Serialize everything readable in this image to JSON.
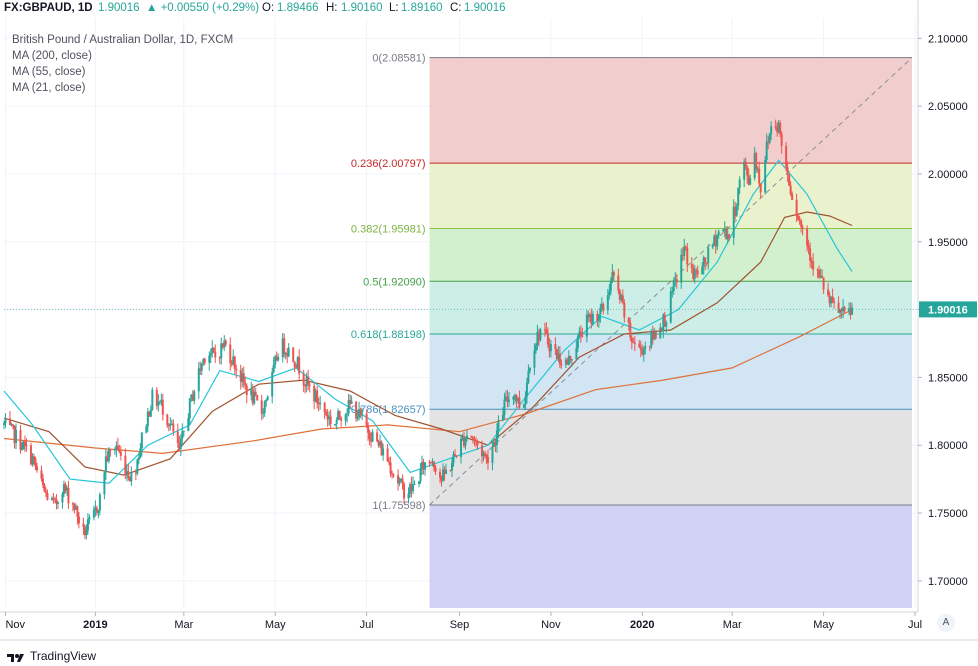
{
  "header": {
    "symbol": "FX:GBPAUD, 1D",
    "last": "1.90016",
    "change": "▲ +0.00550 (+0.29%)",
    "open_label": "O:",
    "open": "1.89466",
    "high_label": "H:",
    "high": "1.90160",
    "low_label": "L:",
    "low": "1.89160",
    "close_label": "C:",
    "close": "1.90016"
  },
  "legend": {
    "title": "British Pound / Australian Dollar, 1D, FXCM",
    "ma200": "MA (200, close)",
    "ma55": "MA (55, close)",
    "ma21": "MA (21, close)"
  },
  "footer": {
    "brand": "TradingView",
    "scale_button": "A"
  },
  "colors": {
    "up": "#26a69a",
    "down": "#ef5350",
    "ma200": "#e0703a",
    "ma55": "#a0522d",
    "ma21": "#26c6da",
    "text": "#131722",
    "grid": "#f0f3fa"
  },
  "chart_data": {
    "type": "candlestick",
    "symbol": "GBPAUD",
    "timeframe": "1D",
    "y_axis": {
      "min": 1.68,
      "max": 2.115,
      "ticks": [
        1.7,
        1.75,
        1.8,
        1.85,
        1.9,
        1.95,
        2.0,
        2.05,
        2.1
      ],
      "tick_labels": [
        "1.70000",
        "1.75000",
        "1.80000",
        "1.85000",
        "1.90000",
        "1.95000",
        "2.00000",
        "2.05000",
        "2.10000"
      ]
    },
    "x_axis": {
      "range": [
        "2018-11-01",
        "2020-07-03"
      ],
      "ticks": [
        {
          "date": "2018-11-02",
          "label": "Nov"
        },
        {
          "date": "2019-01-01",
          "label": "2019"
        },
        {
          "date": "2019-03-01",
          "label": "Mar"
        },
        {
          "date": "2019-05-01",
          "label": "May"
        },
        {
          "date": "2019-07-01",
          "label": "Jul"
        },
        {
          "date": "2019-09-01",
          "label": "Sep"
        },
        {
          "date": "2019-11-01",
          "label": "Nov"
        },
        {
          "date": "2020-01-01",
          "label": "2020"
        },
        {
          "date": "2020-03-01",
          "label": "Mar"
        },
        {
          "date": "2020-05-01",
          "label": "May"
        },
        {
          "date": "2020-07-01",
          "label": "Jul"
        }
      ]
    },
    "last_price": {
      "value": 1.90016,
      "label": "1.90016"
    },
    "fibonacci": {
      "start": "2019-08-12",
      "end": "2020-06-29",
      "anchor_low": {
        "date": "2019-08-12",
        "price": 1.75598
      },
      "anchor_high": {
        "date": "2020-06-29",
        "price": 2.08581
      },
      "levels": [
        {
          "ratio": 0,
          "price": 2.08581,
          "label": "0(2.08581)",
          "line": "#787b86",
          "fill": "#f2cdcd",
          "label_color": "#787b86"
        },
        {
          "ratio": 0.236,
          "price": 2.00797,
          "label": "0.236(2.00797)",
          "line": "#c62828",
          "fill": "#e9f2cc",
          "label_color": "#c62828"
        },
        {
          "ratio": 0.382,
          "price": 1.95981,
          "label": "0.382(1.95981)",
          "line": "#8bc34a",
          "fill": "#d3f0ce",
          "label_color": "#7cb342"
        },
        {
          "ratio": 0.5,
          "price": 1.9209,
          "label": "0.5(1.92090)",
          "line": "#43a047",
          "fill": "#cceee6",
          "label_color": "#43a047"
        },
        {
          "ratio": 0.618,
          "price": 1.88198,
          "label": "0.618(1.88198)",
          "line": "#26a69a",
          "fill": "#d2e5f2",
          "label_color": "#26a69a"
        },
        {
          "ratio": 0.786,
          "price": 1.82657,
          "label": "0.786(1.82657)",
          "line": "#4a90c2",
          "fill": "#e3e3e3",
          "label_color": "#4a90c2"
        },
        {
          "ratio": 1,
          "price": 1.75598,
          "label": "1(1.75598)",
          "line": "#787b86",
          "fill": "#d1d1f5",
          "label_color": "#787b86"
        }
      ],
      "bottom_fill": "#d1d1f5",
      "bottom_price": 1.68
    },
    "price_path": [
      [
        "2018-11-01",
        1.815
      ],
      [
        "2018-11-10",
        1.805
      ],
      [
        "2018-11-20",
        1.79
      ],
      [
        "2018-11-28",
        1.765
      ],
      [
        "2018-12-05",
        1.755
      ],
      [
        "2018-12-10",
        1.77
      ],
      [
        "2018-12-18",
        1.755
      ],
      [
        "2018-12-24",
        1.735
      ],
      [
        "2018-12-30",
        1.745
      ],
      [
        "2019-01-04",
        1.76
      ],
      [
        "2019-01-08",
        1.79
      ],
      [
        "2019-01-15",
        1.8
      ],
      [
        "2019-01-20",
        1.785
      ],
      [
        "2019-01-26",
        1.775
      ],
      [
        "2019-02-02",
        1.81
      ],
      [
        "2019-02-08",
        1.835
      ],
      [
        "2019-02-14",
        1.83
      ],
      [
        "2019-02-20",
        1.815
      ],
      [
        "2019-02-26",
        1.795
      ],
      [
        "2019-03-04",
        1.825
      ],
      [
        "2019-03-10",
        1.85
      ],
      [
        "2019-03-16",
        1.87
      ],
      [
        "2019-03-22",
        1.865
      ],
      [
        "2019-03-28",
        1.875
      ],
      [
        "2019-04-04",
        1.86
      ],
      [
        "2019-04-10",
        1.845
      ],
      [
        "2019-04-16",
        1.835
      ],
      [
        "2019-04-22",
        1.825
      ],
      [
        "2019-04-28",
        1.845
      ],
      [
        "2019-05-04",
        1.875
      ],
      [
        "2019-05-10",
        1.87
      ],
      [
        "2019-05-16",
        1.86
      ],
      [
        "2019-05-22",
        1.845
      ],
      [
        "2019-05-28",
        1.835
      ],
      [
        "2019-06-03",
        1.825
      ],
      [
        "2019-06-09",
        1.815
      ],
      [
        "2019-06-15",
        1.825
      ],
      [
        "2019-06-21",
        1.83
      ],
      [
        "2019-06-27",
        1.82
      ],
      [
        "2019-07-03",
        1.81
      ],
      [
        "2019-07-09",
        1.8
      ],
      [
        "2019-07-15",
        1.79
      ],
      [
        "2019-07-21",
        1.775
      ],
      [
        "2019-07-27",
        1.765
      ],
      [
        "2019-08-02",
        1.77
      ],
      [
        "2019-08-08",
        1.785
      ],
      [
        "2019-08-14",
        1.79
      ],
      [
        "2019-08-20",
        1.775
      ],
      [
        "2019-08-26",
        1.785
      ],
      [
        "2019-09-01",
        1.8
      ],
      [
        "2019-09-07",
        1.81
      ],
      [
        "2019-09-13",
        1.8
      ],
      [
        "2019-09-19",
        1.79
      ],
      [
        "2019-09-25",
        1.805
      ],
      [
        "2019-10-01",
        1.83
      ],
      [
        "2019-10-07",
        1.84
      ],
      [
        "2019-10-13",
        1.825
      ],
      [
        "2019-10-19",
        1.87
      ],
      [
        "2019-10-25",
        1.885
      ],
      [
        "2019-10-31",
        1.875
      ],
      [
        "2019-11-06",
        1.865
      ],
      [
        "2019-11-12",
        1.86
      ],
      [
        "2019-11-18",
        1.875
      ],
      [
        "2019-11-24",
        1.89
      ],
      [
        "2019-11-30",
        1.895
      ],
      [
        "2019-12-06",
        1.9
      ],
      [
        "2019-12-12",
        1.925
      ],
      [
        "2019-12-18",
        1.905
      ],
      [
        "2019-12-24",
        1.88
      ],
      [
        "2019-12-30",
        1.87
      ],
      [
        "2020-01-05",
        1.875
      ],
      [
        "2020-01-11",
        1.885
      ],
      [
        "2020-01-17",
        1.895
      ],
      [
        "2020-01-23",
        1.92
      ],
      [
        "2020-01-29",
        1.945
      ],
      [
        "2020-02-04",
        1.925
      ],
      [
        "2020-02-10",
        1.93
      ],
      [
        "2020-02-16",
        1.945
      ],
      [
        "2020-02-22",
        1.96
      ],
      [
        "2020-02-28",
        1.955
      ],
      [
        "2020-03-04",
        1.98
      ],
      [
        "2020-03-08",
        2.01
      ],
      [
        "2020-03-12",
        1.995
      ],
      [
        "2020-03-16",
        2.015
      ],
      [
        "2020-03-20",
        1.99
      ],
      [
        "2020-03-24",
        2.02
      ],
      [
        "2020-03-28",
        2.04
      ],
      [
        "2020-04-01",
        2.035
      ],
      [
        "2020-04-05",
        2.01
      ],
      [
        "2020-04-10",
        1.985
      ],
      [
        "2020-04-15",
        1.965
      ],
      [
        "2020-04-20",
        1.95
      ],
      [
        "2020-04-25",
        1.93
      ],
      [
        "2020-04-30",
        1.92
      ],
      [
        "2020-05-05",
        1.905
      ],
      [
        "2020-05-10",
        1.9
      ],
      [
        "2020-05-15",
        1.895
      ],
      [
        "2020-05-20",
        1.9
      ]
    ],
    "moving_averages": [
      {
        "name": "MA (200, close)",
        "color": "#e0703a",
        "points": [
          [
            "2018-11-01",
            1.805
          ],
          [
            "2019-01-01",
            1.798
          ],
          [
            "2019-02-15",
            1.794
          ],
          [
            "2019-04-15",
            1.803
          ],
          [
            "2019-06-01",
            1.812
          ],
          [
            "2019-07-15",
            1.815
          ],
          [
            "2019-09-01",
            1.81
          ],
          [
            "2019-10-15",
            1.823
          ],
          [
            "2019-12-01",
            1.841
          ],
          [
            "2020-01-15",
            1.848
          ],
          [
            "2020-03-01",
            1.857
          ],
          [
            "2020-04-15",
            1.88
          ],
          [
            "2020-05-20",
            1.9
          ]
        ]
      },
      {
        "name": "MA (55, close)",
        "color": "#a0522d",
        "points": [
          [
            "2018-11-01",
            1.82
          ],
          [
            "2018-12-01",
            1.81
          ],
          [
            "2018-12-25",
            1.784
          ],
          [
            "2019-01-20",
            1.778
          ],
          [
            "2019-02-20",
            1.79
          ],
          [
            "2019-03-20",
            1.825
          ],
          [
            "2019-04-20",
            1.845
          ],
          [
            "2019-05-20",
            1.848
          ],
          [
            "2019-06-20",
            1.84
          ],
          [
            "2019-07-20",
            1.822
          ],
          [
            "2019-08-20",
            1.812
          ],
          [
            "2019-09-20",
            1.8
          ],
          [
            "2019-10-20",
            1.828
          ],
          [
            "2019-11-20",
            1.865
          ],
          [
            "2019-12-20",
            1.882
          ],
          [
            "2020-01-20",
            1.885
          ],
          [
            "2020-02-20",
            1.905
          ],
          [
            "2020-03-20",
            1.935
          ],
          [
            "2020-04-05",
            1.968
          ],
          [
            "2020-04-20",
            1.972
          ],
          [
            "2020-05-05",
            1.969
          ],
          [
            "2020-05-20",
            1.962
          ]
        ]
      },
      {
        "name": "MA (21, close)",
        "color": "#26c6da",
        "points": [
          [
            "2018-11-01",
            1.84
          ],
          [
            "2018-11-20",
            1.815
          ],
          [
            "2018-12-15",
            1.775
          ],
          [
            "2019-01-10",
            1.772
          ],
          [
            "2019-02-05",
            1.8
          ],
          [
            "2019-03-05",
            1.815
          ],
          [
            "2019-03-25",
            1.855
          ],
          [
            "2019-04-20",
            1.847
          ],
          [
            "2019-05-15",
            1.857
          ],
          [
            "2019-06-10",
            1.834
          ],
          [
            "2019-07-05",
            1.818
          ],
          [
            "2019-07-30",
            1.78
          ],
          [
            "2019-08-25",
            1.79
          ],
          [
            "2019-09-20",
            1.8
          ],
          [
            "2019-10-15",
            1.835
          ],
          [
            "2019-11-10",
            1.87
          ],
          [
            "2019-12-05",
            1.895
          ],
          [
            "2019-12-30",
            1.885
          ],
          [
            "2020-01-25",
            1.9
          ],
          [
            "2020-02-20",
            1.935
          ],
          [
            "2020-03-15",
            1.985
          ],
          [
            "2020-04-01",
            2.01
          ],
          [
            "2020-04-20",
            1.985
          ],
          [
            "2020-05-10",
            1.945
          ],
          [
            "2020-05-20",
            1.928
          ]
        ]
      }
    ]
  }
}
